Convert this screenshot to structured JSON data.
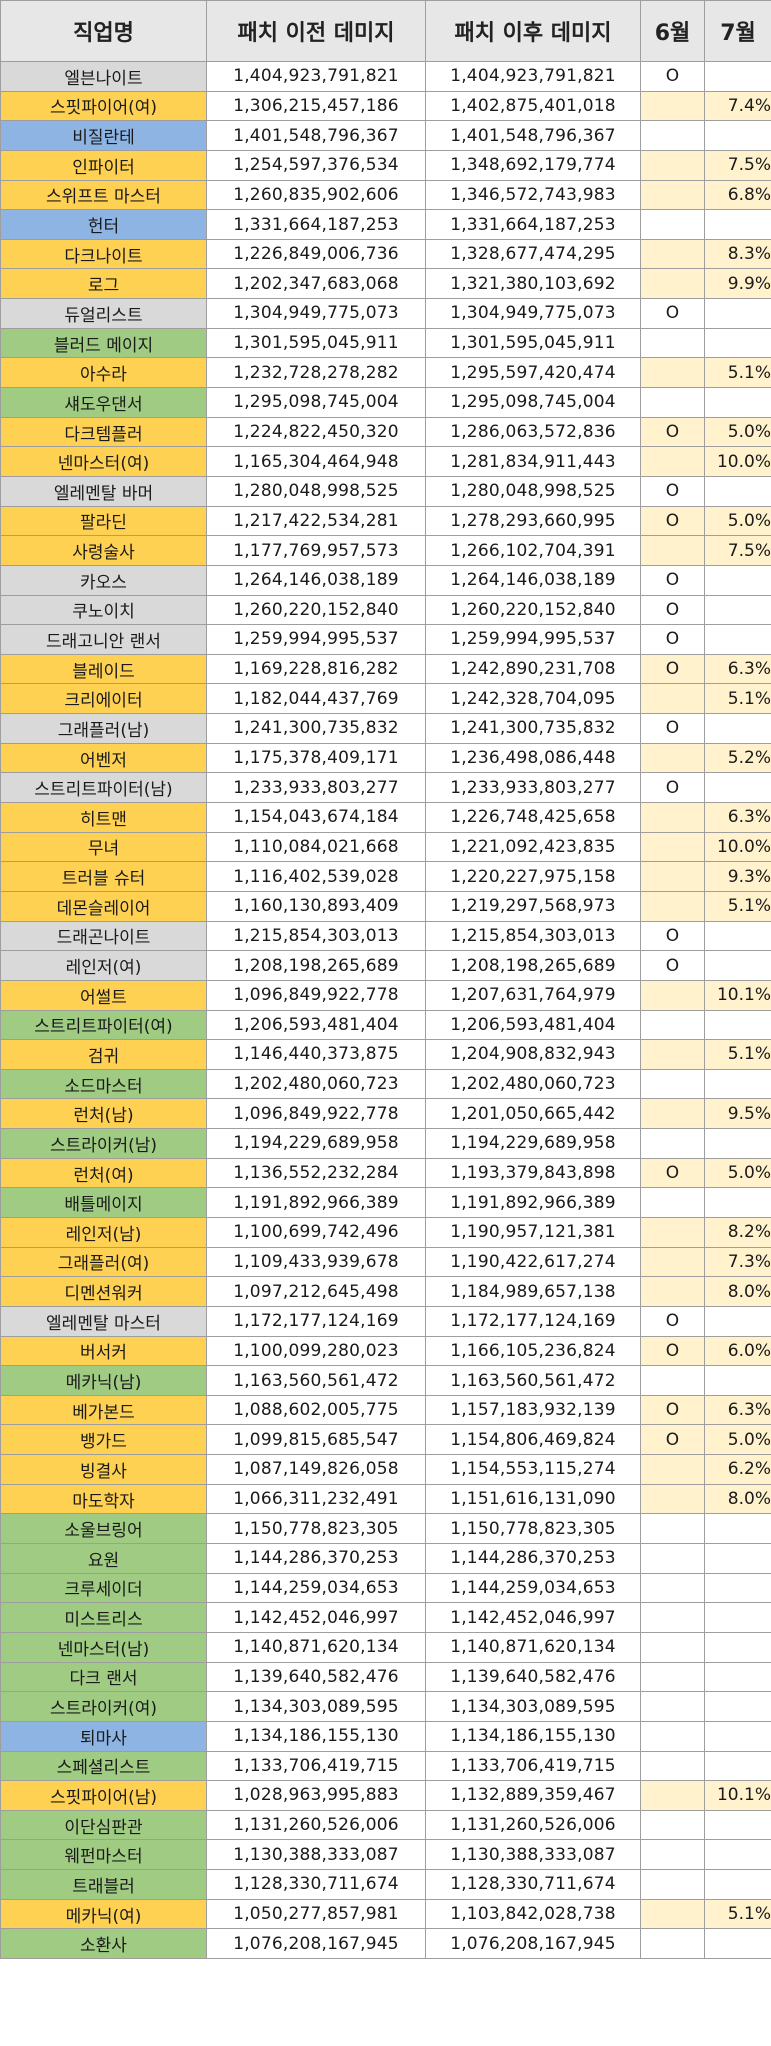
{
  "headers": {
    "name": "직업명",
    "before": "패치 이전 데미지",
    "after": "패치 이후 데미지",
    "june": "6월",
    "july": "7월"
  },
  "rows": [
    {
      "name": "엘븐나이트",
      "before": "1,404,923,791,821",
      "after": "1,404,923,791,821",
      "jun": "O",
      "jul": "",
      "color": "gray"
    },
    {
      "name": "스핏파이어(여)",
      "before": "1,306,215,457,186",
      "after": "1,402,875,401,018",
      "jun": "",
      "jul": "7.4%",
      "color": "yellow"
    },
    {
      "name": "비질란테",
      "before": "1,401,548,796,367",
      "after": "1,401,548,796,367",
      "jun": "",
      "jul": "",
      "color": "blue"
    },
    {
      "name": "인파이터",
      "before": "1,254,597,376,534",
      "after": "1,348,692,179,774",
      "jun": "",
      "jul": "7.5%",
      "color": "yellow"
    },
    {
      "name": "스위프트 마스터",
      "before": "1,260,835,902,606",
      "after": "1,346,572,743,983",
      "jun": "",
      "jul": "6.8%",
      "color": "yellow"
    },
    {
      "name": "헌터",
      "before": "1,331,664,187,253",
      "after": "1,331,664,187,253",
      "jun": "",
      "jul": "",
      "color": "blue"
    },
    {
      "name": "다크나이트",
      "before": "1,226,849,006,736",
      "after": "1,328,677,474,295",
      "jun": "",
      "jul": "8.3%",
      "color": "yellow"
    },
    {
      "name": "로그",
      "before": "1,202,347,683,068",
      "after": "1,321,380,103,692",
      "jun": "",
      "jul": "9.9%",
      "color": "yellow"
    },
    {
      "name": "듀얼리스트",
      "before": "1,304,949,775,073",
      "after": "1,304,949,775,073",
      "jun": "O",
      "jul": "",
      "color": "gray"
    },
    {
      "name": "블러드 메이지",
      "before": "1,301,595,045,911",
      "after": "1,301,595,045,911",
      "jun": "",
      "jul": "",
      "color": "green"
    },
    {
      "name": "아수라",
      "before": "1,232,728,278,282",
      "after": "1,295,597,420,474",
      "jun": "",
      "jul": "5.1%",
      "color": "yellow"
    },
    {
      "name": "섀도우댄서",
      "before": "1,295,098,745,004",
      "after": "1,295,098,745,004",
      "jun": "",
      "jul": "",
      "color": "green"
    },
    {
      "name": "다크템플러",
      "before": "1,224,822,450,320",
      "after": "1,286,063,572,836",
      "jun": "O",
      "jul": "5.0%",
      "color": "yellow"
    },
    {
      "name": "넨마스터(여)",
      "before": "1,165,304,464,948",
      "after": "1,281,834,911,443",
      "jun": "",
      "jul": "10.0%",
      "color": "yellow"
    },
    {
      "name": "엘레멘탈 바머",
      "before": "1,280,048,998,525",
      "after": "1,280,048,998,525",
      "jun": "O",
      "jul": "",
      "color": "gray"
    },
    {
      "name": "팔라딘",
      "before": "1,217,422,534,281",
      "after": "1,278,293,660,995",
      "jun": "O",
      "jul": "5.0%",
      "color": "yellow"
    },
    {
      "name": "사령술사",
      "before": "1,177,769,957,573",
      "after": "1,266,102,704,391",
      "jun": "",
      "jul": "7.5%",
      "color": "yellow"
    },
    {
      "name": "카오스",
      "before": "1,264,146,038,189",
      "after": "1,264,146,038,189",
      "jun": "O",
      "jul": "",
      "color": "gray"
    },
    {
      "name": "쿠노이치",
      "before": "1,260,220,152,840",
      "after": "1,260,220,152,840",
      "jun": "O",
      "jul": "",
      "color": "gray"
    },
    {
      "name": "드래고니안 랜서",
      "before": "1,259,994,995,537",
      "after": "1,259,994,995,537",
      "jun": "O",
      "jul": "",
      "color": "gray"
    },
    {
      "name": "블레이드",
      "before": "1,169,228,816,282",
      "after": "1,242,890,231,708",
      "jun": "O",
      "jul": "6.3%",
      "color": "yellow"
    },
    {
      "name": "크리에이터",
      "before": "1,182,044,437,769",
      "after": "1,242,328,704,095",
      "jun": "",
      "jul": "5.1%",
      "color": "yellow"
    },
    {
      "name": "그래플러(남)",
      "before": "1,241,300,735,832",
      "after": "1,241,300,735,832",
      "jun": "O",
      "jul": "",
      "color": "gray"
    },
    {
      "name": "어벤저",
      "before": "1,175,378,409,171",
      "after": "1,236,498,086,448",
      "jun": "",
      "jul": "5.2%",
      "color": "yellow"
    },
    {
      "name": "스트리트파이터(남)",
      "before": "1,233,933,803,277",
      "after": "1,233,933,803,277",
      "jun": "O",
      "jul": "",
      "color": "gray"
    },
    {
      "name": "히트맨",
      "before": "1,154,043,674,184",
      "after": "1,226,748,425,658",
      "jun": "",
      "jul": "6.3%",
      "color": "yellow"
    },
    {
      "name": "무녀",
      "before": "1,110,084,021,668",
      "after": "1,221,092,423,835",
      "jun": "",
      "jul": "10.0%",
      "color": "yellow"
    },
    {
      "name": "트러블 슈터",
      "before": "1,116,402,539,028",
      "after": "1,220,227,975,158",
      "jun": "",
      "jul": "9.3%",
      "color": "yellow"
    },
    {
      "name": "데몬슬레이어",
      "before": "1,160,130,893,409",
      "after": "1,219,297,568,973",
      "jun": "",
      "jul": "5.1%",
      "color": "yellow"
    },
    {
      "name": "드래곤나이트",
      "before": "1,215,854,303,013",
      "after": "1,215,854,303,013",
      "jun": "O",
      "jul": "",
      "color": "gray"
    },
    {
      "name": "레인저(여)",
      "before": "1,208,198,265,689",
      "after": "1,208,198,265,689",
      "jun": "O",
      "jul": "",
      "color": "gray"
    },
    {
      "name": "어썰트",
      "before": "1,096,849,922,778",
      "after": "1,207,631,764,979",
      "jun": "",
      "jul": "10.1%",
      "color": "yellow"
    },
    {
      "name": "스트리트파이터(여)",
      "before": "1,206,593,481,404",
      "after": "1,206,593,481,404",
      "jun": "",
      "jul": "",
      "color": "green"
    },
    {
      "name": "검귀",
      "before": "1,146,440,373,875",
      "after": "1,204,908,832,943",
      "jun": "",
      "jul": "5.1%",
      "color": "yellow"
    },
    {
      "name": "소드마스터",
      "before": "1,202,480,060,723",
      "after": "1,202,480,060,723",
      "jun": "",
      "jul": "",
      "color": "green"
    },
    {
      "name": "런처(남)",
      "before": "1,096,849,922,778",
      "after": "1,201,050,665,442",
      "jun": "",
      "jul": "9.5%",
      "color": "yellow"
    },
    {
      "name": "스트라이커(남)",
      "before": "1,194,229,689,958",
      "after": "1,194,229,689,958",
      "jun": "",
      "jul": "",
      "color": "green"
    },
    {
      "name": "런처(여)",
      "before": "1,136,552,232,284",
      "after": "1,193,379,843,898",
      "jun": "O",
      "jul": "5.0%",
      "color": "yellow"
    },
    {
      "name": "배틀메이지",
      "before": "1,191,892,966,389",
      "after": "1,191,892,966,389",
      "jun": "",
      "jul": "",
      "color": "green"
    },
    {
      "name": "레인저(남)",
      "before": "1,100,699,742,496",
      "after": "1,190,957,121,381",
      "jun": "",
      "jul": "8.2%",
      "color": "yellow"
    },
    {
      "name": "그래플러(여)",
      "before": "1,109,433,939,678",
      "after": "1,190,422,617,274",
      "jun": "",
      "jul": "7.3%",
      "color": "yellow"
    },
    {
      "name": "디멘션워커",
      "before": "1,097,212,645,498",
      "after": "1,184,989,657,138",
      "jun": "",
      "jul": "8.0%",
      "color": "yellow"
    },
    {
      "name": "엘레멘탈 마스터",
      "before": "1,172,177,124,169",
      "after": "1,172,177,124,169",
      "jun": "O",
      "jul": "",
      "color": "gray"
    },
    {
      "name": "버서커",
      "before": "1,100,099,280,023",
      "after": "1,166,105,236,824",
      "jun": "O",
      "jul": "6.0%",
      "color": "yellow"
    },
    {
      "name": "메카닉(남)",
      "before": "1,163,560,561,472",
      "after": "1,163,560,561,472",
      "jun": "",
      "jul": "",
      "color": "green"
    },
    {
      "name": "베가본드",
      "before": "1,088,602,005,775",
      "after": "1,157,183,932,139",
      "jun": "O",
      "jul": "6.3%",
      "color": "yellow"
    },
    {
      "name": "뱅가드",
      "before": "1,099,815,685,547",
      "after": "1,154,806,469,824",
      "jun": "O",
      "jul": "5.0%",
      "color": "yellow"
    },
    {
      "name": "빙결사",
      "before": "1,087,149,826,058",
      "after": "1,154,553,115,274",
      "jun": "",
      "jul": "6.2%",
      "color": "yellow"
    },
    {
      "name": "마도학자",
      "before": "1,066,311,232,491",
      "after": "1,151,616,131,090",
      "jun": "",
      "jul": "8.0%",
      "color": "yellow"
    },
    {
      "name": "소울브링어",
      "before": "1,150,778,823,305",
      "after": "1,150,778,823,305",
      "jun": "",
      "jul": "",
      "color": "green"
    },
    {
      "name": "요원",
      "before": "1,144,286,370,253",
      "after": "1,144,286,370,253",
      "jun": "",
      "jul": "",
      "color": "green"
    },
    {
      "name": "크루세이더",
      "before": "1,144,259,034,653",
      "after": "1,144,259,034,653",
      "jun": "",
      "jul": "",
      "color": "green"
    },
    {
      "name": "미스트리스",
      "before": "1,142,452,046,997",
      "after": "1,142,452,046,997",
      "jun": "",
      "jul": "",
      "color": "green"
    },
    {
      "name": "넨마스터(남)",
      "before": "1,140,871,620,134",
      "after": "1,140,871,620,134",
      "jun": "",
      "jul": "",
      "color": "green"
    },
    {
      "name": "다크 랜서",
      "before": "1,139,640,582,476",
      "after": "1,139,640,582,476",
      "jun": "",
      "jul": "",
      "color": "green"
    },
    {
      "name": "스트라이커(여)",
      "before": "1,134,303,089,595",
      "after": "1,134,303,089,595",
      "jun": "",
      "jul": "",
      "color": "green"
    },
    {
      "name": "퇴마사",
      "before": "1,134,186,155,130",
      "after": "1,134,186,155,130",
      "jun": "",
      "jul": "",
      "color": "blue"
    },
    {
      "name": "스페셜리스트",
      "before": "1,133,706,419,715",
      "after": "1,133,706,419,715",
      "jun": "",
      "jul": "",
      "color": "green"
    },
    {
      "name": "스핏파이어(남)",
      "before": "1,028,963,995,883",
      "after": "1,132,889,359,467",
      "jun": "",
      "jul": "10.1%",
      "color": "yellow"
    },
    {
      "name": "이단심판관",
      "before": "1,131,260,526,006",
      "after": "1,131,260,526,006",
      "jun": "",
      "jul": "",
      "color": "green"
    },
    {
      "name": "웨펀마스터",
      "before": "1,130,388,333,087",
      "after": "1,130,388,333,087",
      "jun": "",
      "jul": "",
      "color": "green"
    },
    {
      "name": "트래블러",
      "before": "1,128,330,711,674",
      "after": "1,128,330,711,674",
      "jun": "",
      "jul": "",
      "color": "green"
    },
    {
      "name": "메카닉(여)",
      "before": "1,050,277,857,981",
      "after": "1,103,842,028,738",
      "jun": "",
      "jul": "5.1%",
      "color": "yellow"
    },
    {
      "name": "소환사",
      "before": "1,076,208,167,945",
      "after": "1,076,208,167,945",
      "jun": "",
      "jul": "",
      "color": "green"
    }
  ]
}
